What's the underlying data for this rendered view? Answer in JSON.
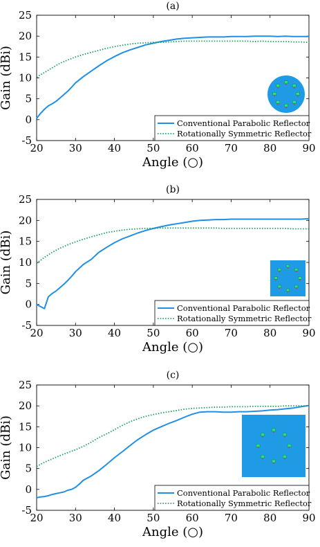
{
  "legend_entries": [
    "Conventional Parabolic Reflector",
    "Rotationally Symmetric Reflector"
  ],
  "colors": {
    "conventional": "#1f8fe6",
    "symmetric": "#14a05a",
    "inset_bg": "#1f9be6",
    "inset_element": "#2ee07a",
    "inset_feed": "#e03030"
  },
  "chart_data": [
    {
      "type": "line",
      "title": "(a)",
      "xlabel": "Angle (○)",
      "ylabel": "Gain (dBi)",
      "xlim": [
        20,
        90
      ],
      "ylim": [
        -5,
        25
      ],
      "xticks": [
        20,
        30,
        40,
        50,
        60,
        70,
        80,
        90
      ],
      "yticks": [
        -5,
        0,
        5,
        10,
        15,
        20,
        25
      ],
      "grid": false,
      "legend_position": "bottom-right",
      "inset_shape": "circle",
      "series": [
        {
          "name": "Conventional Parabolic Reflector",
          "style": "solid",
          "x": [
            20,
            21,
            22,
            23,
            24,
            25,
            26,
            27,
            28,
            29,
            30,
            32,
            34,
            36,
            38,
            40,
            42,
            44,
            46,
            48,
            50,
            52,
            54,
            56,
            58,
            60,
            62,
            64,
            66,
            68,
            70,
            72,
            74,
            76,
            78,
            80,
            82,
            84,
            86,
            88,
            90
          ],
          "y": [
            0.3,
            1.5,
            2.5,
            3.3,
            3.8,
            4.4,
            5.2,
            6.0,
            6.8,
            7.8,
            8.8,
            10.3,
            11.6,
            12.9,
            14.1,
            15.1,
            16.0,
            16.7,
            17.3,
            17.9,
            18.3,
            18.7,
            19.0,
            19.3,
            19.5,
            19.6,
            19.7,
            19.8,
            19.8,
            19.8,
            19.9,
            19.9,
            19.9,
            20.0,
            20.0,
            20.0,
            19.9,
            20.0,
            19.9,
            19.9,
            19.9
          ]
        },
        {
          "name": "Rotationally Symmetric Reflector",
          "style": "dotted",
          "x": [
            20,
            22,
            24,
            26,
            28,
            30,
            32,
            34,
            36,
            38,
            40,
            42,
            44,
            46,
            48,
            50,
            52,
            54,
            56,
            58,
            60,
            62,
            64,
            66,
            68,
            70,
            72,
            74,
            76,
            78,
            80,
            82,
            84,
            86,
            88,
            90
          ],
          "y": [
            10.2,
            11.3,
            12.4,
            13.5,
            14.3,
            15.0,
            15.6,
            16.1,
            16.6,
            17.1,
            17.5,
            17.8,
            18.1,
            18.3,
            18.4,
            18.5,
            18.5,
            18.6,
            18.7,
            18.8,
            18.8,
            18.8,
            18.8,
            18.8,
            18.8,
            18.8,
            18.8,
            18.8,
            18.7,
            18.8,
            18.7,
            18.7,
            18.7,
            18.6,
            18.6,
            18.5
          ]
        }
      ]
    },
    {
      "type": "line",
      "title": "(b)",
      "xlabel": "Angle (○)",
      "ylabel": "Gain (dBi)",
      "xlim": [
        20,
        90
      ],
      "ylim": [
        -5,
        25
      ],
      "xticks": [
        20,
        30,
        40,
        50,
        60,
        70,
        80,
        90
      ],
      "yticks": [
        -5,
        0,
        5,
        10,
        15,
        20,
        25
      ],
      "grid": false,
      "legend_position": "bottom-right",
      "inset_shape": "square",
      "series": [
        {
          "name": "Conventional Parabolic Reflector",
          "style": "solid",
          "x": [
            20,
            21,
            22,
            23,
            24,
            25,
            26,
            27,
            28,
            29,
            30,
            32,
            34,
            36,
            38,
            40,
            42,
            44,
            46,
            48,
            50,
            52,
            54,
            56,
            58,
            60,
            62,
            64,
            66,
            68,
            70,
            72,
            74,
            76,
            78,
            80,
            82,
            84,
            86,
            88,
            90
          ],
          "y": [
            0.0,
            -0.5,
            -1.0,
            1.8,
            2.6,
            3.2,
            4.0,
            4.8,
            5.7,
            6.7,
            7.8,
            9.5,
            10.7,
            12.4,
            13.6,
            14.7,
            15.6,
            16.3,
            17.0,
            17.6,
            18.1,
            18.5,
            18.9,
            19.2,
            19.5,
            19.8,
            20.0,
            20.1,
            20.2,
            20.2,
            20.3,
            20.3,
            20.3,
            20.3,
            20.3,
            20.3,
            20.3,
            20.3,
            20.3,
            20.3,
            20.4
          ]
        },
        {
          "name": "Rotationally Symmetric Reflector",
          "style": "dotted",
          "x": [
            20,
            22,
            24,
            26,
            28,
            30,
            32,
            34,
            36,
            38,
            40,
            42,
            44,
            46,
            48,
            50,
            52,
            54,
            56,
            58,
            60,
            62,
            64,
            66,
            68,
            70,
            72,
            74,
            76,
            78,
            80,
            82,
            84,
            86,
            88,
            90
          ],
          "y": [
            9.8,
            11.2,
            12.4,
            13.4,
            14.2,
            14.9,
            15.5,
            16.1,
            16.6,
            17.1,
            17.4,
            17.7,
            17.9,
            18.0,
            18.1,
            18.1,
            18.2,
            18.2,
            18.2,
            18.2,
            18.2,
            18.2,
            18.2,
            18.2,
            18.1,
            18.1,
            18.1,
            18.1,
            18.1,
            18.1,
            18.1,
            18.1,
            18.1,
            18.0,
            18.0,
            18.0
          ]
        }
      ]
    },
    {
      "type": "line",
      "title": "(c)",
      "xlabel": "Angle (○)",
      "ylabel": "Gain (dBi)",
      "xlim": [
        20,
        90
      ],
      "ylim": [
        -5,
        25
      ],
      "xticks": [
        20,
        30,
        40,
        50,
        60,
        70,
        80,
        90
      ],
      "yticks": [
        -5,
        0,
        5,
        10,
        15,
        20,
        25
      ],
      "grid": false,
      "legend_position": "bottom-right",
      "inset_shape": "large-square",
      "series": [
        {
          "name": "Conventional Parabolic Reflector",
          "style": "solid",
          "x": [
            20,
            21,
            22,
            23,
            24,
            25,
            26,
            27,
            28,
            29,
            30,
            31,
            32,
            34,
            36,
            38,
            40,
            42,
            44,
            46,
            48,
            50,
            52,
            54,
            56,
            58,
            60,
            62,
            64,
            66,
            68,
            70,
            72,
            74,
            76,
            78,
            80,
            82,
            84,
            86,
            88,
            90
          ],
          "y": [
            -2.0,
            -1.8,
            -1.7,
            -1.5,
            -1.2,
            -1.0,
            -0.8,
            -0.6,
            -0.2,
            0.0,
            0.5,
            1.3,
            2.2,
            3.2,
            4.5,
            6.0,
            7.6,
            9.0,
            10.5,
            11.9,
            13.1,
            14.2,
            15.0,
            15.8,
            16.5,
            17.3,
            18.0,
            18.5,
            18.6,
            18.6,
            18.5,
            18.5,
            18.6,
            18.6,
            18.7,
            18.8,
            19.0,
            19.1,
            19.3,
            19.5,
            19.8,
            20.1
          ]
        },
        {
          "name": "Rotationally Symmetric Reflector",
          "style": "dotted",
          "x": [
            20,
            22,
            24,
            26,
            28,
            30,
            32,
            34,
            36,
            38,
            40,
            42,
            44,
            46,
            48,
            50,
            52,
            54,
            56,
            58,
            60,
            62,
            64,
            66,
            68,
            70,
            72,
            74,
            76,
            78,
            80,
            82,
            84,
            86,
            88,
            90
          ],
          "y": [
            5.5,
            6.5,
            7.3,
            8.1,
            8.8,
            9.5,
            10.3,
            11.3,
            12.4,
            13.3,
            14.3,
            15.3,
            16.2,
            16.9,
            17.5,
            17.9,
            18.3,
            18.6,
            18.9,
            19.2,
            19.4,
            19.5,
            19.6,
            19.7,
            19.7,
            19.8,
            19.8,
            19.8,
            19.9,
            19.9,
            19.9,
            19.9,
            20.0,
            20.0,
            20.0,
            20.0
          ]
        }
      ]
    }
  ]
}
